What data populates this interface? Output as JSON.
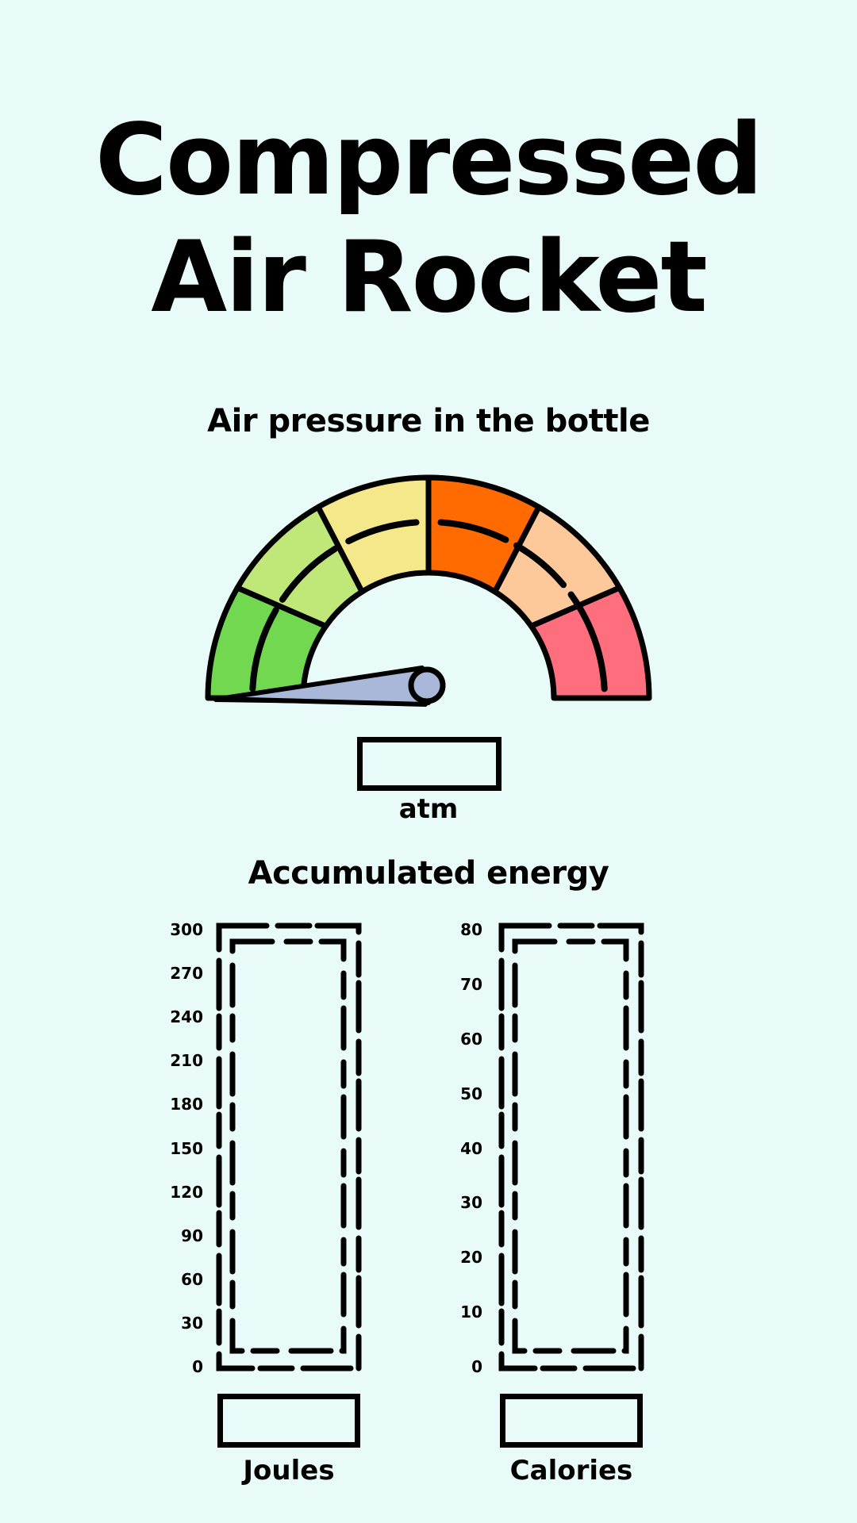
{
  "title": {
    "line1": "Compressed",
    "line2": "Air Rocket"
  },
  "pressure": {
    "heading": "Air pressure in the bottle",
    "unit": "atm",
    "value": "",
    "zone_colors": [
      "#72d84f",
      "#bfe878",
      "#f5e88a",
      "#ff6b00",
      "#fdc89a",
      "#ff6e7d"
    ]
  },
  "energy": {
    "heading": "Accumulated energy",
    "joules": {
      "unit": "Joules",
      "value": "",
      "ticks": [
        "300",
        "270",
        "240",
        "210",
        "180",
        "150",
        "120",
        "90",
        "60",
        "30",
        "0"
      ]
    },
    "calories": {
      "unit": "Calories",
      "value": "",
      "ticks": [
        "80",
        "70",
        "60",
        "50",
        "40",
        "30",
        "20",
        "10",
        "0"
      ]
    }
  }
}
